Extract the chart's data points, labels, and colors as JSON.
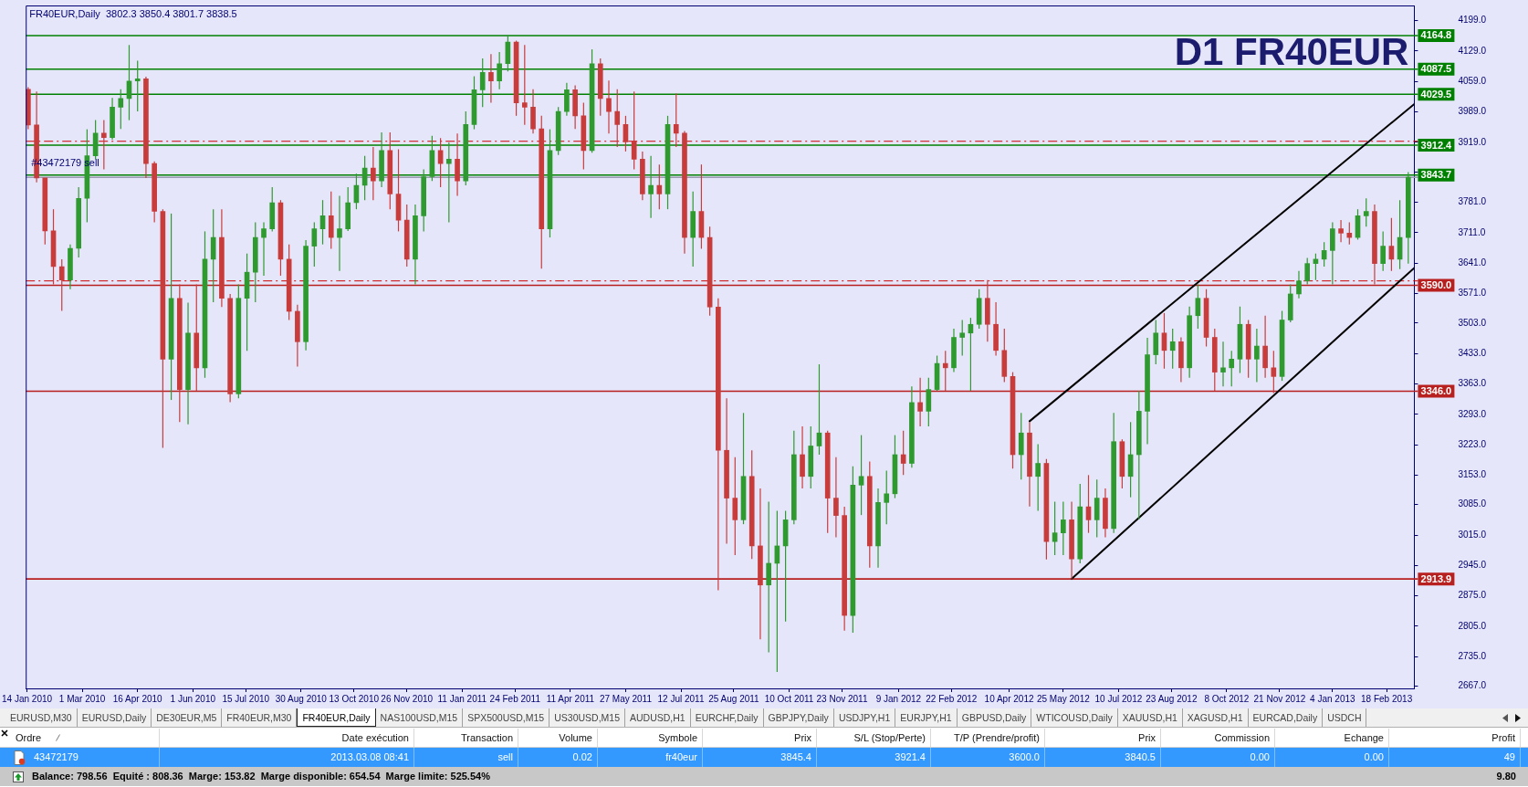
{
  "chart_data": {
    "type": "candlestick",
    "title": "FR40EUR,Daily  3802.3 3850.4 3801.7 3838.5",
    "subtitle": "D1 FR40EUR",
    "series": [
      {
        "x": [
          "2010-01-15",
          "2010-01-22",
          "2010-01-29",
          "2010-02-05",
          "2010-02-12",
          "2010-02-19",
          "2010-02-26",
          "2010-03-05",
          "2010-03-12",
          "2010-03-19",
          "2010-03-26",
          "2010-04-02",
          "2010-04-09",
          "2010-04-16",
          "2010-04-23",
          "2010-04-30",
          "2010-05-07",
          "2010-05-14",
          "2010-05-21",
          "2010-05-28",
          "2010-06-04",
          "2010-06-11",
          "2010-06-18",
          "2010-06-25",
          "2010-07-02",
          "2010-07-09",
          "2010-07-16",
          "2010-07-23",
          "2010-07-30",
          "2010-08-06",
          "2010-08-13",
          "2010-08-20",
          "2010-08-27",
          "2010-09-03",
          "2010-09-10",
          "2010-09-17",
          "2010-09-24",
          "2010-10-01",
          "2010-10-08",
          "2010-10-15",
          "2010-10-22",
          "2010-10-29",
          "2010-11-05",
          "2010-11-12",
          "2010-11-19",
          "2010-11-26",
          "2010-12-03",
          "2010-12-10",
          "2010-12-17",
          "2010-12-24",
          "2010-12-31",
          "2011-01-07",
          "2011-01-14",
          "2011-01-21",
          "2011-01-28",
          "2011-02-04",
          "2011-02-11",
          "2011-02-18",
          "2011-02-25",
          "2011-03-04",
          "2011-03-11",
          "2011-03-18",
          "2011-03-25",
          "2011-04-01",
          "2011-04-08",
          "2011-04-15",
          "2011-04-22",
          "2011-04-29",
          "2011-05-06",
          "2011-05-13",
          "2011-05-20",
          "2011-05-27",
          "2011-06-03",
          "2011-06-10",
          "2011-06-17",
          "2011-06-24",
          "2011-07-01",
          "2011-07-08",
          "2011-07-15",
          "2011-07-22",
          "2011-07-29",
          "2011-08-05",
          "2011-08-12",
          "2011-08-19",
          "2011-08-26",
          "2011-09-02",
          "2011-09-09",
          "2011-09-16",
          "2011-09-23",
          "2011-09-30",
          "2011-10-07",
          "2011-10-14",
          "2011-10-21",
          "2011-10-28",
          "2011-11-04",
          "2011-11-11",
          "2011-11-18",
          "2011-11-25",
          "2011-12-02",
          "2011-12-09",
          "2011-12-16",
          "2011-12-23",
          "2011-12-30",
          "2012-01-06",
          "2012-01-13",
          "2012-01-20",
          "2012-01-27",
          "2012-02-03",
          "2012-02-10",
          "2012-02-17",
          "2012-02-24",
          "2012-03-02",
          "2012-03-09",
          "2012-03-16",
          "2012-03-23",
          "2012-03-30",
          "2012-04-06",
          "2012-04-13",
          "2012-04-20",
          "2012-04-27",
          "2012-05-04",
          "2012-05-11",
          "2012-05-18",
          "2012-05-25",
          "2012-06-01",
          "2012-06-08",
          "2012-06-15",
          "2012-06-22",
          "2012-06-29",
          "2012-07-06",
          "2012-07-13",
          "2012-07-20",
          "2012-07-27",
          "2012-08-03",
          "2012-08-10",
          "2012-08-17",
          "2012-08-24",
          "2012-08-31",
          "2012-09-07",
          "2012-09-14",
          "2012-09-21",
          "2012-09-28",
          "2012-10-05",
          "2012-10-12",
          "2012-10-19",
          "2012-10-26",
          "2012-11-02",
          "2012-11-09",
          "2012-11-16",
          "2012-11-23",
          "2012-11-30",
          "2012-12-07",
          "2012-12-14",
          "2012-12-21",
          "2012-12-28",
          "2013-01-04",
          "2013-01-11",
          "2013-01-18",
          "2013-01-25",
          "2013-02-01",
          "2013-02-08",
          "2013-02-15",
          "2013-02-22",
          "2013-03-01",
          "2013-03-08"
        ],
        "ohlc": [
          [
            4041,
            4046,
            3949,
            3959
          ],
          [
            3959,
            4036,
            3827,
            3837
          ],
          [
            3837,
            3837,
            3684,
            3715
          ],
          [
            3715,
            3765,
            3592,
            3633
          ],
          [
            3633,
            3650,
            3531,
            3602
          ],
          [
            3602,
            3684,
            3581,
            3675
          ],
          [
            3675,
            3816,
            3654,
            3790
          ],
          [
            3790,
            3949,
            3735,
            3888
          ],
          [
            3888,
            3970,
            3880,
            3940
          ],
          [
            3940,
            3970,
            3857,
            3930
          ],
          [
            3930,
            4021,
            3925,
            4000
          ],
          [
            4000,
            4041,
            3950,
            4020
          ],
          [
            4020,
            4143,
            3970,
            4060
          ],
          [
            4060,
            4107,
            3990,
            4065
          ],
          [
            4065,
            4070,
            3837,
            3870
          ],
          [
            3870,
            3875,
            3735,
            3760
          ],
          [
            3760,
            3765,
            3216,
            3420
          ],
          [
            3420,
            3755,
            3326,
            3560
          ],
          [
            3560,
            3592,
            3275,
            3350
          ],
          [
            3350,
            3550,
            3270,
            3480
          ],
          [
            3480,
            3592,
            3347,
            3400
          ],
          [
            3400,
            3714,
            3377,
            3650
          ],
          [
            3650,
            3765,
            3551,
            3700
          ],
          [
            3700,
            3765,
            3540,
            3560
          ],
          [
            3560,
            3570,
            3321,
            3340
          ],
          [
            3340,
            3592,
            3330,
            3560
          ],
          [
            3560,
            3663,
            3439,
            3620
          ],
          [
            3620,
            3735,
            3551,
            3700
          ],
          [
            3700,
            3735,
            3612,
            3720
          ],
          [
            3720,
            3816,
            3714,
            3780
          ],
          [
            3780,
            3786,
            3612,
            3650
          ],
          [
            3650,
            3684,
            3510,
            3530
          ],
          [
            3530,
            3545,
            3403,
            3460
          ],
          [
            3460,
            3694,
            3440,
            3680
          ],
          [
            3680,
            3735,
            3633,
            3720
          ],
          [
            3720,
            3786,
            3684,
            3750
          ],
          [
            3750,
            3806,
            3674,
            3700
          ],
          [
            3700,
            3796,
            3623,
            3720
          ],
          [
            3720,
            3816,
            3715,
            3780
          ],
          [
            3780,
            3847,
            3765,
            3820
          ],
          [
            3820,
            3888,
            3786,
            3860
          ],
          [
            3860,
            3908,
            3786,
            3830
          ],
          [
            3830,
            3942,
            3816,
            3900
          ],
          [
            3900,
            3942,
            3765,
            3800
          ],
          [
            3800,
            3903,
            3714,
            3740
          ],
          [
            3740,
            3776,
            3633,
            3650
          ],
          [
            3650,
            3776,
            3592,
            3750
          ],
          [
            3750,
            3857,
            3714,
            3840
          ],
          [
            3840,
            3934,
            3830,
            3900
          ],
          [
            3900,
            3929,
            3816,
            3870
          ],
          [
            3870,
            3919,
            3735,
            3880
          ],
          [
            3880,
            3939,
            3796,
            3830
          ],
          [
            3830,
            3990,
            3820,
            3960
          ],
          [
            3960,
            4071,
            3949,
            4040
          ],
          [
            4040,
            4112,
            4000,
            4080
          ],
          [
            4080,
            4122,
            4010,
            4060
          ],
          [
            4060,
            4127,
            4041,
            4100
          ],
          [
            4100,
            4165,
            4082,
            4150
          ],
          [
            4150,
            4153,
            3980,
            4010
          ],
          [
            4010,
            4143,
            3959,
            4000
          ],
          [
            4000,
            4041,
            3939,
            3950
          ],
          [
            3950,
            3980,
            3628,
            3720
          ],
          [
            3720,
            3949,
            3700,
            3900
          ],
          [
            3900,
            4000,
            3890,
            3990
          ],
          [
            3990,
            4056,
            3980,
            4040
          ],
          [
            4040,
            4050,
            3950,
            3980
          ],
          [
            3980,
            4010,
            3857,
            3900
          ],
          [
            3900,
            4133,
            3895,
            4100
          ],
          [
            4100,
            4112,
            3980,
            4020
          ],
          [
            4020,
            4061,
            3939,
            3990
          ],
          [
            3990,
            4041,
            3908,
            3960
          ],
          [
            3960,
            3980,
            3898,
            3920
          ],
          [
            3920,
            4036,
            3857,
            3880
          ],
          [
            3880,
            3898,
            3786,
            3800
          ],
          [
            3800,
            3888,
            3745,
            3820
          ],
          [
            3820,
            3868,
            3765,
            3800
          ],
          [
            3800,
            3980,
            3765,
            3960
          ],
          [
            3960,
            4031,
            3908,
            3940
          ],
          [
            3940,
            3945,
            3663,
            3700
          ],
          [
            3700,
            3806,
            3633,
            3760
          ],
          [
            3760,
            3868,
            3674,
            3700
          ],
          [
            3700,
            3725,
            3520,
            3540
          ],
          [
            3540,
            3560,
            2888,
            3210
          ],
          [
            3210,
            3330,
            2995,
            3100
          ],
          [
            3100,
            3194,
            2969,
            3050
          ],
          [
            3050,
            3296,
            3040,
            3150
          ],
          [
            3150,
            3210,
            2960,
            2990
          ],
          [
            2990,
            3122,
            2775,
            2900
          ],
          [
            2900,
            3092,
            2745,
            2950
          ],
          [
            2950,
            3071,
            2700,
            2990
          ],
          [
            2990,
            3071,
            2816,
            3050
          ],
          [
            3050,
            3255,
            3040,
            3200
          ],
          [
            3200,
            3265,
            3122,
            3150
          ],
          [
            3150,
            3265,
            3122,
            3220
          ],
          [
            3220,
            3408,
            3200,
            3250
          ],
          [
            3250,
            3255,
            3020,
            3100
          ],
          [
            3100,
            3194,
            3010,
            3060
          ],
          [
            3060,
            3080,
            2795,
            2830
          ],
          [
            2830,
            3173,
            2790,
            3130
          ],
          [
            3130,
            3245,
            3061,
            3150
          ],
          [
            3150,
            3184,
            2940,
            2990
          ],
          [
            2990,
            3122,
            2940,
            3090
          ],
          [
            3090,
            3163,
            3040,
            3110
          ],
          [
            3110,
            3245,
            3100,
            3200
          ],
          [
            3200,
            3255,
            3153,
            3180
          ],
          [
            3180,
            3357,
            3170,
            3320
          ],
          [
            3320,
            3377,
            3265,
            3300
          ],
          [
            3300,
            3377,
            3265,
            3350
          ],
          [
            3350,
            3428,
            3347,
            3410
          ],
          [
            3410,
            3439,
            3347,
            3400
          ],
          [
            3400,
            3490,
            3390,
            3470
          ],
          [
            3470,
            3510,
            3428,
            3480
          ],
          [
            3480,
            3515,
            3347,
            3500
          ],
          [
            3500,
            3581,
            3490,
            3560
          ],
          [
            3560,
            3602,
            3460,
            3500
          ],
          [
            3500,
            3551,
            3428,
            3440
          ],
          [
            3440,
            3490,
            3367,
            3380
          ],
          [
            3380,
            3390,
            3168,
            3200
          ],
          [
            3200,
            3296,
            3143,
            3250
          ],
          [
            3250,
            3275,
            3081,
            3150
          ],
          [
            3150,
            3224,
            3071,
            3180
          ],
          [
            3180,
            3190,
            2959,
            3000
          ],
          [
            3000,
            3092,
            2969,
            3020
          ],
          [
            3020,
            3092,
            2969,
            3050
          ],
          [
            3050,
            3092,
            2913,
            2960
          ],
          [
            2960,
            3133,
            2950,
            3080
          ],
          [
            3080,
            3153,
            3020,
            3050
          ],
          [
            3050,
            3143,
            3010,
            3100
          ],
          [
            3100,
            3122,
            3010,
            3030
          ],
          [
            3030,
            3296,
            3020,
            3230
          ],
          [
            3230,
            3235,
            3122,
            3150
          ],
          [
            3150,
            3275,
            3102,
            3200
          ],
          [
            3200,
            3347,
            3051,
            3300
          ],
          [
            3300,
            3469,
            3224,
            3430
          ],
          [
            3430,
            3510,
            3408,
            3480
          ],
          [
            3480,
            3526,
            3398,
            3440
          ],
          [
            3440,
            3490,
            3398,
            3460
          ],
          [
            3460,
            3470,
            3367,
            3400
          ],
          [
            3400,
            3541,
            3377,
            3520
          ],
          [
            3520,
            3592,
            3490,
            3560
          ],
          [
            3560,
            3581,
            3449,
            3470
          ],
          [
            3470,
            3490,
            3347,
            3390
          ],
          [
            3390,
            3460,
            3357,
            3400
          ],
          [
            3400,
            3439,
            3357,
            3420
          ],
          [
            3420,
            3541,
            3388,
            3500
          ],
          [
            3500,
            3510,
            3377,
            3420
          ],
          [
            3420,
            3490,
            3367,
            3450
          ],
          [
            3450,
            3520,
            3377,
            3400
          ],
          [
            3400,
            3439,
            3342,
            3380
          ],
          [
            3380,
            3531,
            3370,
            3510
          ],
          [
            3510,
            3592,
            3505,
            3570
          ],
          [
            3570,
            3623,
            3560,
            3600
          ],
          [
            3600,
            3653,
            3592,
            3640
          ],
          [
            3640,
            3663,
            3602,
            3650
          ],
          [
            3650,
            3689,
            3633,
            3670
          ],
          [
            3670,
            3735,
            3592,
            3720
          ],
          [
            3720,
            3740,
            3689,
            3710
          ],
          [
            3710,
            3735,
            3684,
            3700
          ],
          [
            3700,
            3765,
            3695,
            3750
          ],
          [
            3750,
            3790,
            3725,
            3760
          ],
          [
            3760,
            3776,
            3592,
            3640
          ],
          [
            3640,
            3714,
            3623,
            3680
          ],
          [
            3680,
            3745,
            3623,
            3650
          ],
          [
            3650,
            3786,
            3627,
            3700
          ],
          [
            3700,
            3850.4,
            3640,
            3838.5
          ]
        ],
        "colors": [
          "#c83c3c",
          "#c83c3c",
          "#c83c3c",
          "#c83c3c",
          "#c83c3c",
          "#2f9a2f",
          "#2f9a2f",
          "#2f9a2f",
          "#2f9a2f",
          "#c83c3c",
          "#2f9a2f",
          "#2f9a2f",
          "#2f9a2f",
          "#2f9a2f",
          "#c83c3c",
          "#c83c3c",
          "#c83c3c",
          "#2f9a2f",
          "#c83c3c",
          "#2f9a2f",
          "#c83c3c",
          "#2f9a2f",
          "#2f9a2f",
          "#c83c3c",
          "#c83c3c",
          "#2f9a2f",
          "#2f9a2f",
          "#2f9a2f",
          "#2f9a2f",
          "#2f9a2f",
          "#c83c3c",
          "#c83c3c",
          "#c83c3c",
          "#2f9a2f",
          "#2f9a2f",
          "#2f9a2f",
          "#c83c3c",
          "#2f9a2f",
          "#2f9a2f",
          "#2f9a2f",
          "#2f9a2f",
          "#c83c3c",
          "#2f9a2f",
          "#c83c3c",
          "#c83c3c",
          "#c83c3c",
          "#2f9a2f",
          "#2f9a2f",
          "#2f9a2f",
          "#c83c3c",
          "#2f9a2f",
          "#c83c3c",
          "#2f9a2f",
          "#2f9a2f",
          "#2f9a2f",
          "#c83c3c",
          "#2f9a2f",
          "#2f9a2f",
          "#c83c3c",
          "#c83c3c",
          "#c83c3c",
          "#c83c3c",
          "#2f9a2f",
          "#2f9a2f",
          "#2f9a2f",
          "#c83c3c",
          "#c83c3c",
          "#2f9a2f",
          "#c83c3c",
          "#c83c3c",
          "#c83c3c",
          "#c83c3c",
          "#c83c3c",
          "#c83c3c",
          "#2f9a2f",
          "#c83c3c",
          "#2f9a2f",
          "#c83c3c",
          "#c83c3c",
          "#2f9a2f",
          "#c83c3c",
          "#c83c3c",
          "#c83c3c",
          "#c83c3c",
          "#c83c3c",
          "#2f9a2f",
          "#c83c3c",
          "#c83c3c",
          "#2f9a2f",
          "#2f9a2f",
          "#2f9a2f",
          "#2f9a2f",
          "#c83c3c",
          "#2f9a2f",
          "#2f9a2f",
          "#c83c3c",
          "#c83c3c",
          "#c83c3c",
          "#2f9a2f",
          "#2f9a2f",
          "#c83c3c",
          "#2f9a2f",
          "#2f9a2f",
          "#2f9a2f",
          "#c83c3c",
          "#2f9a2f",
          "#c83c3c",
          "#2f9a2f",
          "#2f9a2f",
          "#c83c3c",
          "#2f9a2f",
          "#2f9a2f",
          "#2f9a2f",
          "#2f9a2f",
          "#c83c3c",
          "#c83c3c",
          "#c83c3c",
          "#c83c3c",
          "#2f9a2f",
          "#c83c3c",
          "#2f9a2f",
          "#c83c3c",
          "#2f9a2f",
          "#2f9a2f",
          "#c83c3c",
          "#2f9a2f",
          "#c83c3c",
          "#2f9a2f",
          "#c83c3c",
          "#2f9a2f",
          "#c83c3c",
          "#2f9a2f",
          "#2f9a2f",
          "#2f9a2f",
          "#2f9a2f",
          "#c83c3c",
          "#2f9a2f",
          "#c83c3c",
          "#2f9a2f",
          "#2f9a2f",
          "#c83c3c",
          "#c83c3c",
          "#2f9a2f",
          "#2f9a2f",
          "#2f9a2f",
          "#c83c3c",
          "#2f9a2f",
          "#c83c3c",
          "#c83c3c",
          "#2f9a2f",
          "#2f9a2f",
          "#2f9a2f",
          "#2f9a2f",
          "#2f9a2f",
          "#2f9a2f",
          "#2f9a2f",
          "#c83c3c",
          "#c83c3c",
          "#2f9a2f",
          "#2f9a2f",
          "#c83c3c",
          "#2f9a2f",
          "#c83c3c",
          "#2f9a2f",
          "#2f9a2f"
        ]
      },
      {
        "type": "line",
        "color": "#000000",
        "x": [
          "2012-04-27",
          "2013-03-13"
        ],
        "values": [
          3277,
          4007
        ]
      },
      {
        "type": "line",
        "color": "#000000",
        "x": [
          "2012-06-01",
          "2013-03-13"
        ],
        "values": [
          2914,
          3630
        ]
      }
    ],
    "xlim": [
      "2010-01-13",
      "2013-03-13"
    ],
    "xticks": [
      {
        "value": "2010-01-14",
        "label": "14 Jan 2010"
      },
      {
        "value": "2010-03-01",
        "label": "1 Mar 2010"
      },
      {
        "value": "2010-04-16",
        "label": "16 Apr 2010"
      },
      {
        "value": "2010-06-01",
        "label": "1 Jun 2010"
      },
      {
        "value": "2010-07-15",
        "label": "15 Jul 2010"
      },
      {
        "value": "2010-08-30",
        "label": "30 Aug 2010"
      },
      {
        "value": "2010-10-13",
        "label": "13 Oct 2010"
      },
      {
        "value": "2010-11-26",
        "label": "26 Nov 2010"
      },
      {
        "value": "2011-01-11",
        "label": "11 Jan 2011"
      },
      {
        "value": "2011-02-24",
        "label": "24 Feb 2011"
      },
      {
        "value": "2011-04-11",
        "label": "11 Apr 2011"
      },
      {
        "value": "2011-05-27",
        "label": "27 May 2011"
      },
      {
        "value": "2011-07-12",
        "label": "12 Jul 2011"
      },
      {
        "value": "2011-08-25",
        "label": "25 Aug 2011"
      },
      {
        "value": "2011-10-10",
        "label": "10 Oct 2011"
      },
      {
        "value": "2011-11-23",
        "label": "23 Nov 2011"
      },
      {
        "value": "2012-01-09",
        "label": "9 Jan 2012"
      },
      {
        "value": "2012-02-22",
        "label": "22 Feb 2012"
      },
      {
        "value": "2012-04-10",
        "label": "10 Apr 2012"
      },
      {
        "value": "2012-05-25",
        "label": "25 May 2012"
      },
      {
        "value": "2012-07-10",
        "label": "10 Jul 2012"
      },
      {
        "value": "2012-08-23",
        "label": "23 Aug 2012"
      },
      {
        "value": "2012-10-08",
        "label": "8 Oct 2012"
      },
      {
        "value": "2012-11-21",
        "label": "21 Nov 2012"
      },
      {
        "value": "2013-01-04",
        "label": "4 Jan 2013"
      },
      {
        "value": "2013-02-18",
        "label": "18 Feb 2013"
      }
    ],
    "ylim": [
      2662,
      4234
    ],
    "yticks": [
      {
        "value": 2667,
        "label": "2667.0"
      },
      {
        "value": 2735,
        "label": "2735.0"
      },
      {
        "value": 2805,
        "label": "2805.0"
      },
      {
        "value": 2875,
        "label": "2875.0"
      },
      {
        "value": 2945,
        "label": "2945.0"
      },
      {
        "value": 3015,
        "label": "3015.0"
      },
      {
        "value": 3085,
        "label": "3085.0"
      },
      {
        "value": 3153,
        "label": "3153.0"
      },
      {
        "value": 3223,
        "label": "3223.0"
      },
      {
        "value": 3293,
        "label": "3293.0"
      },
      {
        "value": 3363,
        "label": "3363.0"
      },
      {
        "value": 3433,
        "label": "3433.0"
      },
      {
        "value": 3503,
        "label": "3503.0"
      },
      {
        "value": 3571,
        "label": "3571.0"
      },
      {
        "value": 3641,
        "label": "3641.0"
      },
      {
        "value": 3711,
        "label": "3711.0"
      },
      {
        "value": 3781,
        "label": "3781.0"
      },
      {
        "value": 3851,
        "label": null
      },
      {
        "value": 3919,
        "label": "3919.0"
      },
      {
        "value": 3989,
        "label": "3989.0"
      },
      {
        "value": 4059,
        "label": "4059.0"
      },
      {
        "value": 4129,
        "label": "4129.0"
      },
      {
        "value": 4199,
        "label": "4199.0"
      }
    ],
    "ref_lines": [
      {
        "axis": "y",
        "value": 4164.8,
        "label": "4164.8",
        "color": "#008000"
      },
      {
        "axis": "y",
        "value": 4087.5,
        "label": "4087.5",
        "color": "#008000"
      },
      {
        "axis": "y",
        "value": 4029.5,
        "label": "4029.5",
        "color": "#008000"
      },
      {
        "axis": "y",
        "value": 3921.4,
        "color": "#cc0000",
        "line_style": "dashed"
      },
      {
        "axis": "y",
        "value": 3912.4,
        "label": "3912.4",
        "color": "#008000"
      },
      {
        "axis": "y",
        "value": 3843.7,
        "label": "3843.7",
        "color": "#008000"
      },
      {
        "axis": "y",
        "value": 3838.5,
        "color": "#9a9ab0"
      },
      {
        "axis": "y",
        "value": 3600,
        "color": "#cc0000",
        "line_style": "dashed"
      },
      {
        "axis": "y",
        "value": 3590,
        "label": "3590.0",
        "color": "#b81f1f"
      },
      {
        "axis": "y",
        "value": 3346,
        "label": "3346.0",
        "color": "#b81f1f"
      },
      {
        "axis": "y",
        "value": 2913.9,
        "label": "2913.9",
        "color": "#b81f1f"
      }
    ],
    "annotations": [
      {
        "text": "#43472179 sell",
        "x": "2010-01-16",
        "y": 3845.4
      },
      "EURUSD,M30",
      "EURUSD,Daily",
      "DE30EUR,M5",
      "FR40EUR,M30",
      "FR40EUR,Daily",
      "NAS100USD,M15",
      "SPX500USD,M15",
      "US30USD,M15",
      "AUDUSD,H1",
      "EURCHF,Daily",
      "GBPJPY,Daily",
      "USDJPY,H1",
      "EURJPY,H1",
      "GBPUSD,Daily",
      "WTICOUSD,Daily",
      "XAUUSD,H1",
      "XAGUSD,H1",
      "EURCAD,Daily",
      "USDCH",
      "Ordre",
      "Date exécution",
      "Transaction",
      "Volume",
      "Symbole",
      "Prix",
      "S/L (Stop/Perte)",
      "T/P (Prendre/profit)",
      "Prix",
      "Commission",
      "Echange",
      "Profit",
      "43472179",
      "2013.03.08 08:41",
      "sell",
      "0.02",
      "fr40eur",
      "3845.4",
      "3921.4",
      "3600.0",
      "3840.5",
      "0.00",
      "0.00",
      "49",
      "Balance: 798.56  Equité : 808.36  Marge: 153.82  Marge disponible: 654.54  Marge limite: 525.54%",
      "9.80"
    ]
  }
}
